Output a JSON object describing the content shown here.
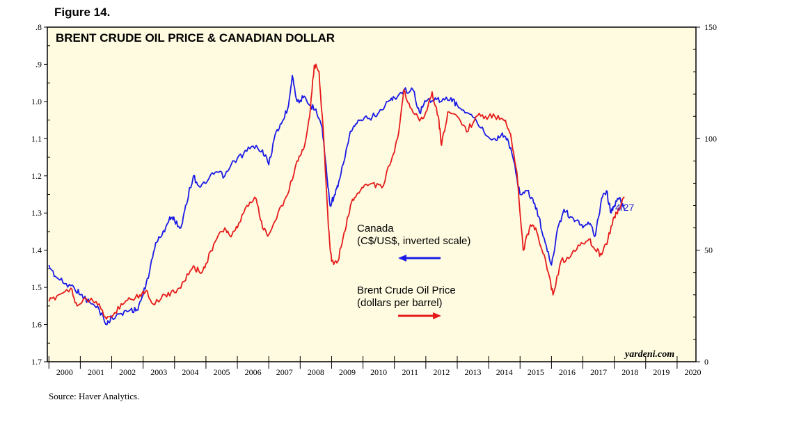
{
  "figure_label": "Figure 14.",
  "source": "Source: Haver Analytics.",
  "chart_data": {
    "type": "line",
    "title": "BRENT CRUDE OIL PRICE & CANADIAN DOLLAR",
    "credit": "yardeni.com",
    "x_range": [
      1999.95,
      2020.6
    ],
    "x_ticks": [
      "2000",
      "2001",
      "2002",
      "2003",
      "2004",
      "2005",
      "2006",
      "2007",
      "2008",
      "2009",
      "2010",
      "2011",
      "2012",
      "2013",
      "2014",
      "2015",
      "2016",
      "2017",
      "2018",
      "2019",
      "2020"
    ],
    "left_axis": {
      "label": "Canada (C$/US$, inverted scale)",
      "range": [
        0.8,
        1.7
      ],
      "inverted": true,
      "ticks": [
        ".8",
        ".9",
        "1.0",
        "1.1",
        "1.2",
        "1.3",
        "1.4",
        "1.5",
        "1.6",
        "1.7"
      ]
    },
    "right_axis": {
      "label": "Brent Crude Oil Price (dollars per barrel)",
      "range": [
        0,
        150
      ],
      "ticks": [
        "0",
        "50",
        "100",
        "150"
      ]
    },
    "end_label": "4/27",
    "series": [
      {
        "name": "Canada",
        "color": "#1a1ae6",
        "axis": "left",
        "annotation": [
          "Canada",
          "(C$/US$, inverted scale)"
        ],
        "arrow": "left",
        "x": [
          2000.0,
          2000.2,
          2000.5,
          2000.8,
          2001.0,
          2001.3,
          2001.6,
          2001.85,
          2002.0,
          2002.3,
          2002.6,
          2002.8,
          2003.0,
          2003.2,
          2003.4,
          2003.6,
          2003.85,
          2004.0,
          2004.2,
          2004.35,
          2004.6,
          2004.8,
          2005.0,
          2005.3,
          2005.6,
          2005.9,
          2006.2,
          2006.5,
          2006.8,
          2007.0,
          2007.2,
          2007.4,
          2007.6,
          2007.75,
          2007.9,
          2008.1,
          2008.3,
          2008.5,
          2008.7,
          2008.85,
          2008.95,
          2009.1,
          2009.2,
          2009.4,
          2009.6,
          2009.8,
          2010.0,
          2010.3,
          2010.5,
          2010.8,
          2011.0,
          2011.3,
          2011.6,
          2011.8,
          2012.0,
          2012.3,
          2012.5,
          2012.8,
          2013.0,
          2013.3,
          2013.6,
          2013.9,
          2014.2,
          2014.4,
          2014.6,
          2014.8,
          2015.0,
          2015.2,
          2015.4,
          2015.6,
          2015.8,
          2016.0,
          2016.2,
          2016.4,
          2016.6,
          2016.8,
          2017.0,
          2017.2,
          2017.4,
          2017.6,
          2017.75,
          2017.9,
          2018.0,
          2018.15,
          2018.32
        ],
        "values": [
          1.44,
          1.47,
          1.49,
          1.5,
          1.52,
          1.54,
          1.56,
          1.6,
          1.58,
          1.57,
          1.56,
          1.56,
          1.52,
          1.46,
          1.38,
          1.36,
          1.31,
          1.32,
          1.34,
          1.28,
          1.2,
          1.23,
          1.22,
          1.19,
          1.2,
          1.16,
          1.14,
          1.12,
          1.13,
          1.17,
          1.09,
          1.06,
          1.02,
          0.93,
          1.0,
          0.99,
          1.01,
          1.02,
          1.07,
          1.2,
          1.28,
          1.25,
          1.23,
          1.16,
          1.08,
          1.06,
          1.05,
          1.04,
          1.03,
          1.0,
          0.99,
          0.97,
          0.97,
          1.03,
          1.0,
          0.99,
          1.0,
          0.99,
          1.01,
          1.03,
          1.05,
          1.09,
          1.1,
          1.09,
          1.1,
          1.16,
          1.25,
          1.24,
          1.26,
          1.31,
          1.38,
          1.44,
          1.34,
          1.29,
          1.31,
          1.32,
          1.34,
          1.33,
          1.36,
          1.26,
          1.24,
          1.3,
          1.28,
          1.26,
          1.29
        ]
      },
      {
        "name": "Brent Crude Oil Price",
        "color": "#e61a1a",
        "axis": "right",
        "annotation": [
          "Brent Crude Oil Price",
          "(dollars per barrel)"
        ],
        "arrow": "right",
        "x": [
          2000.0,
          2000.3,
          2000.7,
          2000.9,
          2001.2,
          2001.5,
          2001.8,
          2002.0,
          2002.3,
          2002.6,
          2002.9,
          2003.1,
          2003.3,
          2003.7,
          2004.0,
          2004.3,
          2004.6,
          2004.8,
          2005.0,
          2005.3,
          2005.6,
          2005.8,
          2006.0,
          2006.3,
          2006.6,
          2006.8,
          2007.0,
          2007.3,
          2007.6,
          2007.9,
          2008.1,
          2008.3,
          2008.45,
          2008.6,
          2008.75,
          2008.9,
          2009.0,
          2009.2,
          2009.4,
          2009.6,
          2009.8,
          2010.0,
          2010.3,
          2010.6,
          2010.9,
          2011.1,
          2011.3,
          2011.5,
          2011.8,
          2012.0,
          2012.2,
          2012.4,
          2012.5,
          2012.7,
          2013.0,
          2013.3,
          2013.6,
          2013.9,
          2014.2,
          2014.5,
          2014.7,
          2014.9,
          2015.1,
          2015.3,
          2015.5,
          2015.7,
          2015.9,
          2016.05,
          2016.3,
          2016.6,
          2016.9,
          2017.2,
          2017.4,
          2017.6,
          2017.8,
          2018.0,
          2018.15,
          2018.32
        ],
        "values": [
          27,
          30,
          33,
          25,
          28,
          27,
          20,
          20,
          26,
          28,
          30,
          32,
          26,
          30,
          31,
          36,
          43,
          40,
          44,
          54,
          60,
          56,
          60,
          70,
          73,
          60,
          57,
          67,
          75,
          90,
          95,
          110,
          133,
          130,
          100,
          60,
          45,
          45,
          58,
          70,
          75,
          78,
          80,
          78,
          90,
          100,
          122,
          114,
          108,
          112,
          121,
          110,
          97,
          112,
          110,
          103,
          110,
          110,
          110,
          108,
          102,
          85,
          50,
          60,
          60,
          50,
          40,
          30,
          45,
          47,
          52,
          55,
          50,
          48,
          55,
          65,
          68,
          74
        ]
      }
    ]
  }
}
